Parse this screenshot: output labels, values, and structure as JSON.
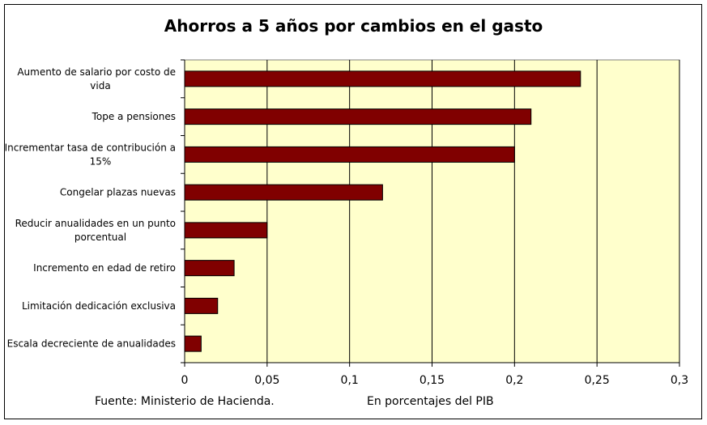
{
  "chart_data": {
    "type": "bar",
    "orientation": "horizontal",
    "title": "Ahorros a 5 años por cambios en el gasto",
    "categories": [
      [
        "Aumento de salario por costo de",
        "vida"
      ],
      [
        "Tope a pensiones"
      ],
      [
        "Incrementar tasa de contribución a",
        "15%"
      ],
      [
        "Congelar plazas nuevas"
      ],
      [
        "Reducir anualidades en un punto",
        "porcentual"
      ],
      [
        "Incremento en edad de retiro"
      ],
      [
        "Limitación dedicación exclusiva"
      ],
      [
        "Escala decreciente de anualidades"
      ]
    ],
    "values": [
      0.24,
      0.21,
      0.2,
      0.12,
      0.05,
      0.03,
      0.02,
      0.01
    ],
    "xlim": [
      0,
      0.3
    ],
    "xticks": [
      0,
      0.05,
      0.1,
      0.15,
      0.2,
      0.25,
      0.3
    ],
    "xtick_labels": [
      "0",
      "0,05",
      "0,1",
      "0,15",
      "0,2",
      "0,25",
      "0,3"
    ],
    "xlabel": "En porcentajes del PIB",
    "source": "Fuente: Ministerio de Hacienda.",
    "grid": "vertical",
    "colors": {
      "bar": "#800000",
      "plot_bg": "#FFFFCC"
    }
  }
}
